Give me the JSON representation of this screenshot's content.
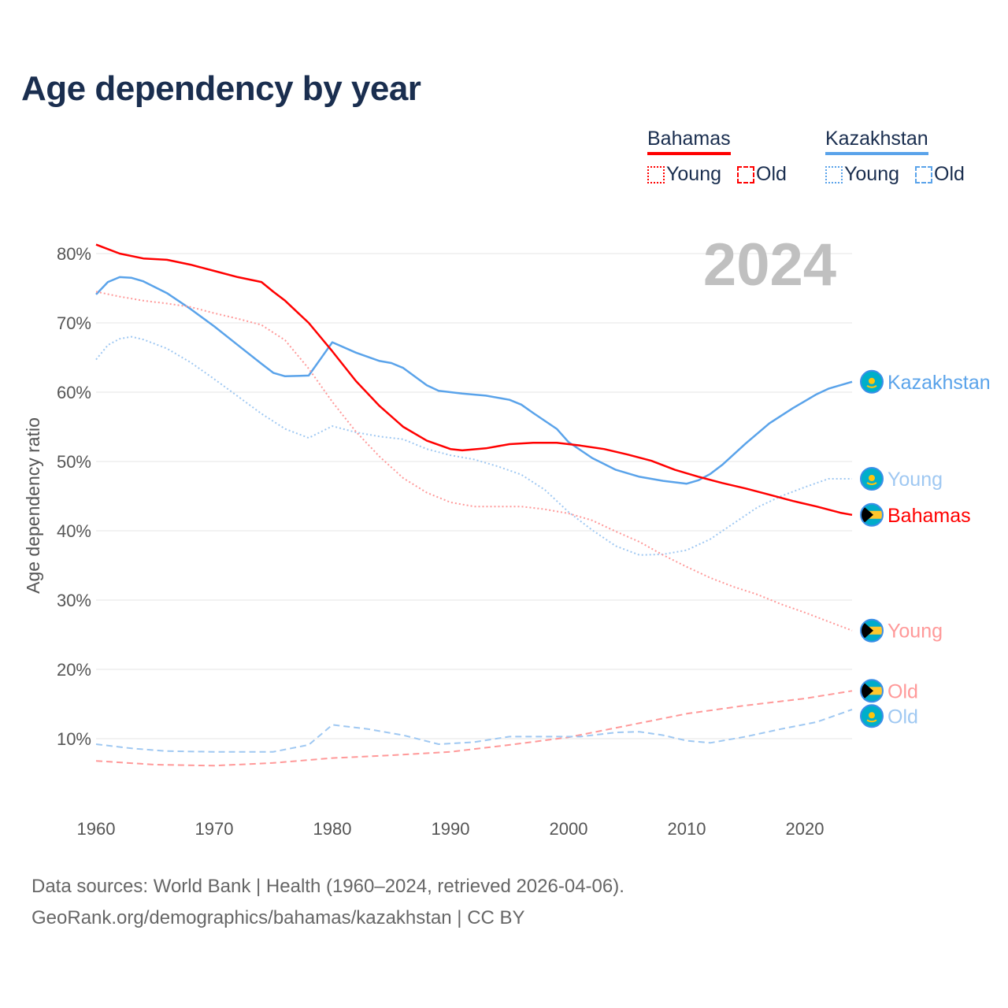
{
  "title": "Age dependency by year",
  "legend": {
    "groups": [
      {
        "country": "Bahamas",
        "color": "#ff0000",
        "light": "#ff9999",
        "items": [
          "Young",
          "Old"
        ]
      },
      {
        "country": "Kazakhstan",
        "color": "#5aa3ea",
        "light": "#9fc8f2",
        "items": [
          "Young",
          "Old"
        ]
      }
    ]
  },
  "year_badge": "2024",
  "footer": {
    "line1": "Data sources: World Bank | Health (1960–2024, retrieved 2026-04-06).",
    "line2": "GeoRank.org/demographics/bahamas/kazakhstan | CC BY"
  },
  "chart_data": {
    "type": "line",
    "title": "Age dependency by year",
    "xlabel": "",
    "ylabel": "Age dependency ratio",
    "xlim": [
      1960,
      2024
    ],
    "ylim": [
      0,
      82
    ],
    "x_ticks": [
      1960,
      1970,
      1980,
      1990,
      2000,
      2010,
      2020
    ],
    "y_ticks": [
      10,
      20,
      30,
      40,
      50,
      60,
      70,
      80
    ],
    "y_tick_labels": [
      "10%",
      "20%",
      "30%",
      "40%",
      "50%",
      "60%",
      "70%",
      "80%"
    ],
    "grid": true,
    "legend_position": "top-right",
    "series": [
      {
        "name": "Kazakhstan",
        "end_label": "Kazakhstan",
        "country": "kazakhstan",
        "style": "solid",
        "color": "#5aa3ea",
        "points": [
          [
            1960,
            74.1
          ],
          [
            1961,
            75.9
          ],
          [
            1962,
            76.6
          ],
          [
            1963,
            76.5
          ],
          [
            1964,
            76.0
          ],
          [
            1966,
            74.3
          ],
          [
            1968,
            72.0
          ],
          [
            1970,
            69.5
          ],
          [
            1972,
            66.8
          ],
          [
            1974,
            64.1
          ],
          [
            1975,
            62.8
          ],
          [
            1976,
            62.3
          ],
          [
            1978,
            62.4
          ],
          [
            1979,
            64.8
          ],
          [
            1980,
            67.2
          ],
          [
            1982,
            65.7
          ],
          [
            1984,
            64.5
          ],
          [
            1985,
            64.2
          ],
          [
            1986,
            63.5
          ],
          [
            1988,
            61.0
          ],
          [
            1989,
            60.2
          ],
          [
            1991,
            59.8
          ],
          [
            1993,
            59.5
          ],
          [
            1995,
            58.9
          ],
          [
            1996,
            58.2
          ],
          [
            1997,
            57.0
          ],
          [
            1999,
            54.7
          ],
          [
            2000,
            52.8
          ],
          [
            2002,
            50.5
          ],
          [
            2004,
            48.8
          ],
          [
            2006,
            47.8
          ],
          [
            2008,
            47.2
          ],
          [
            2010,
            46.8
          ],
          [
            2011,
            47.3
          ],
          [
            2012,
            48.2
          ],
          [
            2013,
            49.5
          ],
          [
            2015,
            52.6
          ],
          [
            2017,
            55.5
          ],
          [
            2019,
            57.7
          ],
          [
            2021,
            59.7
          ],
          [
            2022,
            60.5
          ],
          [
            2024,
            61.5
          ]
        ]
      },
      {
        "name": "Kazakhstan Young",
        "end_label": "Young",
        "country": "kazakhstan",
        "style": "dotted",
        "color": "#9fc8f2",
        "points": [
          [
            1960,
            64.7
          ],
          [
            1961,
            66.8
          ],
          [
            1962,
            67.7
          ],
          [
            1963,
            68.0
          ],
          [
            1964,
            67.6
          ],
          [
            1966,
            66.3
          ],
          [
            1968,
            64.3
          ],
          [
            1970,
            61.9
          ],
          [
            1972,
            59.4
          ],
          [
            1974,
            56.9
          ],
          [
            1976,
            54.7
          ],
          [
            1978,
            53.4
          ],
          [
            1980,
            55.1
          ],
          [
            1982,
            54.2
          ],
          [
            1984,
            53.6
          ],
          [
            1986,
            53.2
          ],
          [
            1988,
            51.8
          ],
          [
            1990,
            50.9
          ],
          [
            1992,
            50.3
          ],
          [
            1994,
            49.3
          ],
          [
            1996,
            48.1
          ],
          [
            1998,
            45.9
          ],
          [
            2000,
            42.7
          ],
          [
            2002,
            40.1
          ],
          [
            2004,
            37.8
          ],
          [
            2006,
            36.5
          ],
          [
            2008,
            36.6
          ],
          [
            2010,
            37.2
          ],
          [
            2012,
            38.8
          ],
          [
            2014,
            41.1
          ],
          [
            2016,
            43.4
          ],
          [
            2018,
            45.0
          ],
          [
            2020,
            46.3
          ],
          [
            2022,
            47.5
          ],
          [
            2024,
            47.5
          ]
        ]
      },
      {
        "name": "Bahamas",
        "end_label": "Bahamas",
        "country": "bahamas",
        "style": "solid",
        "color": "#ff0000",
        "points": [
          [
            1960,
            81.3
          ],
          [
            1962,
            80.0
          ],
          [
            1964,
            79.3
          ],
          [
            1966,
            79.1
          ],
          [
            1968,
            78.4
          ],
          [
            1970,
            77.5
          ],
          [
            1972,
            76.6
          ],
          [
            1974,
            75.9
          ],
          [
            1975,
            74.5
          ],
          [
            1976,
            73.2
          ],
          [
            1978,
            70.0
          ],
          [
            1980,
            65.9
          ],
          [
            1982,
            61.6
          ],
          [
            1984,
            58.0
          ],
          [
            1986,
            55.0
          ],
          [
            1988,
            53.0
          ],
          [
            1990,
            51.8
          ],
          [
            1991,
            51.6
          ],
          [
            1993,
            51.9
          ],
          [
            1995,
            52.5
          ],
          [
            1997,
            52.7
          ],
          [
            1999,
            52.7
          ],
          [
            2001,
            52.3
          ],
          [
            2003,
            51.8
          ],
          [
            2005,
            51.0
          ],
          [
            2007,
            50.1
          ],
          [
            2009,
            48.8
          ],
          [
            2011,
            47.8
          ],
          [
            2013,
            46.9
          ],
          [
            2015,
            46.1
          ],
          [
            2017,
            45.2
          ],
          [
            2019,
            44.3
          ],
          [
            2021,
            43.5
          ],
          [
            2023,
            42.6
          ],
          [
            2024,
            42.3
          ]
        ]
      },
      {
        "name": "Bahamas Young",
        "end_label": "Young",
        "country": "bahamas",
        "style": "dotted",
        "color": "#ff9999",
        "points": [
          [
            1960,
            74.5
          ],
          [
            1962,
            73.8
          ],
          [
            1964,
            73.2
          ],
          [
            1966,
            72.8
          ],
          [
            1968,
            72.3
          ],
          [
            1970,
            71.4
          ],
          [
            1972,
            70.6
          ],
          [
            1974,
            69.7
          ],
          [
            1976,
            67.5
          ],
          [
            1978,
            63.4
          ],
          [
            1980,
            58.6
          ],
          [
            1982,
            54.3
          ],
          [
            1984,
            50.7
          ],
          [
            1986,
            47.6
          ],
          [
            1988,
            45.5
          ],
          [
            1990,
            44.1
          ],
          [
            1992,
            43.5
          ],
          [
            1994,
            43.5
          ],
          [
            1996,
            43.5
          ],
          [
            1998,
            43.1
          ],
          [
            2000,
            42.5
          ],
          [
            2002,
            41.5
          ],
          [
            2004,
            39.9
          ],
          [
            2006,
            38.4
          ],
          [
            2008,
            36.5
          ],
          [
            2010,
            34.8
          ],
          [
            2012,
            33.2
          ],
          [
            2014,
            31.9
          ],
          [
            2016,
            30.8
          ],
          [
            2018,
            29.4
          ],
          [
            2020,
            28.2
          ],
          [
            2022,
            26.9
          ],
          [
            2024,
            25.6
          ]
        ]
      },
      {
        "name": "Bahamas Old",
        "end_label": "Old",
        "country": "bahamas",
        "style": "dashed",
        "color": "#ff9999",
        "points": [
          [
            1960,
            6.8
          ],
          [
            1965,
            6.25
          ],
          [
            1970,
            6.1
          ],
          [
            1975,
            6.5
          ],
          [
            1980,
            7.2
          ],
          [
            1985,
            7.6
          ],
          [
            1990,
            8.1
          ],
          [
            1995,
            9.1
          ],
          [
            2000,
            10.2
          ],
          [
            2005,
            11.9
          ],
          [
            2010,
            13.6
          ],
          [
            2015,
            14.8
          ],
          [
            2020,
            15.8
          ],
          [
            2024,
            16.9
          ]
        ]
      },
      {
        "name": "Kazakhstan Old",
        "end_label": "Old",
        "country": "kazakhstan",
        "style": "dashed",
        "color": "#9fc8f2",
        "points": [
          [
            1960,
            9.2
          ],
          [
            1963,
            8.6
          ],
          [
            1966,
            8.2
          ],
          [
            1970,
            8.1
          ],
          [
            1975,
            8.1
          ],
          [
            1978,
            9.1
          ],
          [
            1980,
            12.0
          ],
          [
            1983,
            11.4
          ],
          [
            1986,
            10.5
          ],
          [
            1989,
            9.2
          ],
          [
            1992,
            9.5
          ],
          [
            1995,
            10.3
          ],
          [
            1998,
            10.3
          ],
          [
            2001,
            10.3
          ],
          [
            2004,
            10.9
          ],
          [
            2006,
            11.0
          ],
          [
            2008,
            10.5
          ],
          [
            2010,
            9.7
          ],
          [
            2012,
            9.4
          ],
          [
            2015,
            10.3
          ],
          [
            2018,
            11.4
          ],
          [
            2021,
            12.4
          ],
          [
            2024,
            14.2
          ]
        ]
      }
    ]
  }
}
